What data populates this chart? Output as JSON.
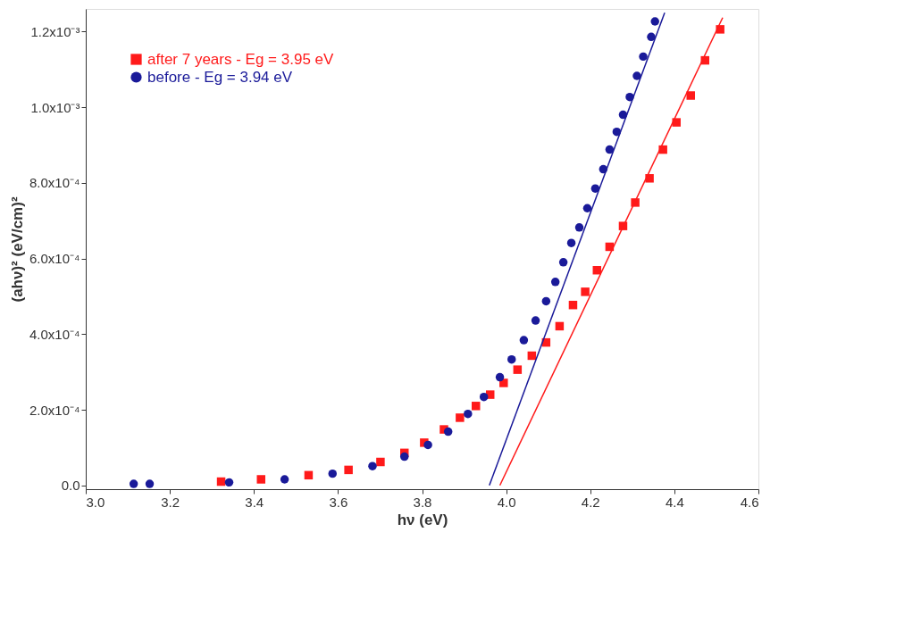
{
  "chart_data": {
    "type": "scatter",
    "xlabel": "hν (eV)",
    "ylabel": "(ahν)² (eV/cm)²",
    "xlim": [
      3.0,
      4.6
    ],
    "xticks": [
      {
        "value": 3,
        "label": "3.0"
      },
      3.2,
      3.4,
      3.6,
      3.8,
      {
        "value": 4,
        "label": "4.0"
      },
      4.2,
      4.4,
      4.6
    ],
    "ylim": [
      -1e-05,
      0.00126
    ],
    "yticks": [
      {
        "value": 0,
        "label": "0.0"
      },
      {
        "value": 0.0002,
        "label": "2.0x10⁻⁴"
      },
      {
        "value": 0.0004,
        "label": "4.0x10⁻⁴"
      },
      {
        "value": 0.0006,
        "label": "6.0x10⁻⁴"
      },
      {
        "value": 0.0008,
        "label": "8.0x10⁻⁴"
      },
      {
        "value": 0.001,
        "label": "1.0x10⁻³"
      },
      {
        "value": 0.0012,
        "label": "1.2x10⁻³"
      }
    ],
    "grid": false,
    "legend": "top left",
    "series": [
      {
        "name": "after 7 years - Eg = 3.95 eV",
        "marker": "square",
        "color": "#ff1a1a",
        "x": [
          3.322,
          3.417,
          3.53,
          3.625,
          3.701,
          3.758,
          3.805,
          3.852,
          3.89,
          3.928,
          3.962,
          3.994,
          4.027,
          4.061,
          4.095,
          4.127,
          4.159,
          4.188,
          4.216,
          4.246,
          4.278,
          4.307,
          4.341,
          4.373,
          4.405,
          4.439,
          4.473,
          4.509
        ],
        "values": [
          1e-05,
          1.6e-05,
          2.7e-05,
          4.1e-05,
          6.2e-05,
          8.6e-05,
          0.000113,
          0.000148,
          0.000179,
          0.00021,
          0.00024,
          0.000271,
          0.000306,
          0.000343,
          0.000378,
          0.000421,
          0.000477,
          0.000512,
          0.000569,
          0.000631,
          0.000686,
          0.000748,
          0.000812,
          0.000888,
          0.00096,
          0.001031,
          0.001124,
          0.001206
        ]
      },
      {
        "name": "before - Eg = 3.94 eV",
        "marker": "circle",
        "color": "#1a1a99",
        "x": [
          3.114,
          3.152,
          3.341,
          3.473,
          3.587,
          3.682,
          3.758,
          3.814,
          3.862,
          3.909,
          3.947,
          3.985,
          4.013,
          4.042,
          4.07,
          4.095,
          4.117,
          4.136,
          4.155,
          4.174,
          4.193,
          4.212,
          4.231,
          4.246,
          4.263,
          4.278,
          4.294,
          4.311,
          4.326,
          4.345,
          4.354
        ],
        "values": [
          4e-06,
          4e-06,
          8e-06,
          1.6e-05,
          3.1e-05,
          5.1e-05,
          7.6e-05,
          0.000107,
          0.000142,
          0.000189,
          0.000234,
          0.000286,
          0.000333,
          0.000384,
          0.000436,
          0.000487,
          0.000538,
          0.00059,
          0.000641,
          0.000682,
          0.000733,
          0.000785,
          0.000836,
          0.000888,
          0.000935,
          0.00098,
          0.001027,
          0.001083,
          0.001134,
          0.001186,
          0.001227
        ]
      },
      {
        "type": "line",
        "color": "#ff1a1a",
        "x": [
          3.985,
          4.515
        ],
        "values": [
          0,
          0.001237
        ]
      },
      {
        "type": "line",
        "color": "#1a1a99",
        "x": [
          3.96,
          4.377
        ],
        "values": [
          0,
          0.00125
        ]
      }
    ]
  }
}
